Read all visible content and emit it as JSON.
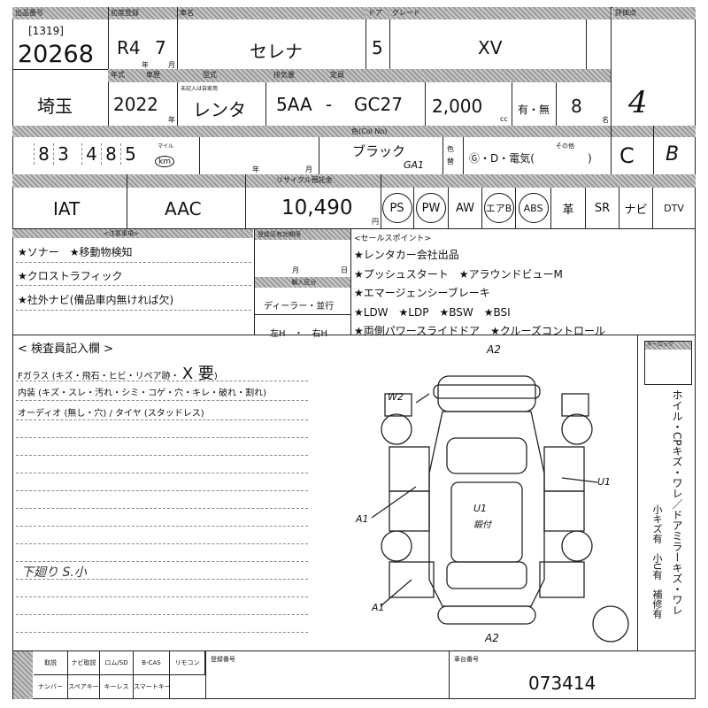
{
  "header": {
    "lot_label": "出品番号",
    "first_reg_label": "初度登録",
    "model_label": "車名",
    "door_label": "ドア",
    "grade_label": "グレード",
    "score_label": "評価点",
    "region_label": "登録",
    "model_year_label": "年式",
    "usage_label": "車歴",
    "type_label": "型式",
    "displacement_label": "排気量",
    "seats_label": "定員"
  },
  "lot": {
    "session": "[1319]",
    "number": "20268"
  },
  "first_registration": {
    "era_year": "R4",
    "month": "7",
    "year_unit": "年",
    "month_unit": "月"
  },
  "model": "セレナ",
  "doors": "5",
  "grade": "XV",
  "region": "埼玉",
  "model_year": "2022",
  "model_year_unit": "年",
  "usage": {
    "note": "未記入は自家用",
    "value": "レンタ"
  },
  "type_code": {
    "prefix": "5AA",
    "sep": "-",
    "code": "GC27"
  },
  "displacement": {
    "value": "2,000",
    "unit": "cc"
  },
  "option": "有・無",
  "seats": {
    "value": "8",
    "unit": "名"
  },
  "score": "4",
  "mileage": {
    "digits": [
      "8",
      "3",
      "4",
      "8",
      "5"
    ],
    "unit_mile": "マイル",
    "unit_km": "km"
  },
  "inspection": {
    "year_unit": "年",
    "month_unit": "月"
  },
  "color": {
    "label": "色(Col No)",
    "name": "ブラック",
    "code": "GA1",
    "change_label": "色替"
  },
  "fuel": {
    "text": "Ⓖ・D・電気(",
    "other": "その他",
    ")": ")"
  },
  "shift_mark": "C",
  "interior_mark": "B",
  "transmission": "IAT",
  "aircon": "AAC",
  "recycle": {
    "label": "リサイクル預託金",
    "value": "10,490",
    "unit": "円"
  },
  "equipment": [
    {
      "label": "PS",
      "circled": true
    },
    {
      "label": "PW",
      "circled": true
    },
    {
      "label": "AW",
      "circled": false
    },
    {
      "label": "エアB",
      "circled": true
    },
    {
      "label": "ABS",
      "circled": true
    },
    {
      "label": "革",
      "circled": false
    },
    {
      "label": "SR",
      "circled": false
    },
    {
      "label": "ナビ",
      "circled": false
    },
    {
      "label": "DTV",
      "circled": false
    }
  ],
  "notes": {
    "label": "<注意事項>",
    "items": [
      "★ソナー　★移動物検知",
      "★クロストラフィック",
      "★社外ナビ(備品車内無ければ欠)"
    ]
  },
  "registration_expiry": {
    "label": "登録証有効期限",
    "month": "月",
    "day": "日"
  },
  "import": {
    "label": "輸入区分",
    "dealer": "ディーラー・並行",
    "handle": "左H　・　右H"
  },
  "sales_points": {
    "label": "<セールスポイント>",
    "items": [
      "★レンタカー会社出品",
      "★プッシュスタート　★アラウンドビューM",
      "★エマージェンシーブレーキ",
      "★LDW　★LDP　★BSW　★BSI",
      "★両側パワースライドドア　★クルーズコントロール"
    ]
  },
  "inspector": {
    "title": "< 検査員記入欄 >",
    "lines": [
      "Fガラス (キズ・飛石・ヒビ・リペア跡・",
      "内装 (キズ・スレ・汚れ・シミ・コゲ・穴・キレ・破れ・割れ)",
      "オーディオ (無し・穴) / タイヤ (スタッドレス)"
    ],
    "fglass_mark": "X 要",
    "handwritten": "下廻り S.小"
  },
  "diagram_marks": {
    "front": "A2",
    "rear": "A2",
    "w": "W2",
    "right": "U1",
    "left": "A1",
    "roof": "U1",
    "roof2": "鍛付",
    "left_low": "A1"
  },
  "right_panel": {
    "label": "キーロック",
    "text1": "ホイル・CPキズ・ワレ／ドアミラーキズ・ワレ",
    "text2": "小キズ有　小U有　補修有"
  },
  "bottom": {
    "items_top": [
      "取説",
      "ナビ取説",
      "ロム/SD",
      "B-CAS",
      "リモコン"
    ],
    "items_bottom": [
      "ナンバー",
      "スペアキー",
      "キーレス",
      "スマートキー"
    ],
    "reg_no_label": "登録番号",
    "chassis_label": "車台番号",
    "chassis_no": "073414"
  }
}
